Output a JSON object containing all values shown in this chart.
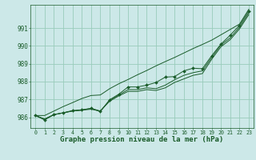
{
  "bg_color": "#cce8e8",
  "grid_color": "#99ccbb",
  "line_color": "#1a5c2a",
  "marker_color": "#1a5c2a",
  "xlabel": "Graphe pression niveau de la mer (hPa)",
  "xlabel_fontsize": 6.5,
  "xlim": [
    -0.5,
    23.5
  ],
  "ylim": [
    985.4,
    992.3
  ],
  "yticks": [
    986,
    987,
    988,
    989,
    990,
    991
  ],
  "xticks": [
    0,
    1,
    2,
    3,
    4,
    5,
    6,
    7,
    8,
    9,
    10,
    11,
    12,
    13,
    14,
    15,
    16,
    17,
    18,
    19,
    20,
    21,
    22,
    23
  ],
  "series": {
    "line_bottom": [
      986.1,
      985.9,
      986.15,
      986.25,
      986.35,
      986.4,
      986.45,
      986.35,
      986.9,
      987.2,
      987.45,
      987.45,
      987.55,
      987.5,
      987.65,
      987.95,
      988.15,
      988.35,
      988.45,
      989.25,
      989.95,
      990.35,
      990.95,
      991.75
    ],
    "line_mid1": [
      986.1,
      985.9,
      986.15,
      986.25,
      986.35,
      986.4,
      986.5,
      986.35,
      986.95,
      987.25,
      987.55,
      987.55,
      987.65,
      987.6,
      987.8,
      988.1,
      988.35,
      988.5,
      988.6,
      989.35,
      990.05,
      990.45,
      991.05,
      991.85
    ],
    "line_marked": [
      986.1,
      985.85,
      986.15,
      986.25,
      986.38,
      986.42,
      986.5,
      986.32,
      986.98,
      987.3,
      987.7,
      987.7,
      987.8,
      987.95,
      988.25,
      988.28,
      988.6,
      988.75,
      988.72,
      989.45,
      990.1,
      990.6,
      991.15,
      991.95
    ],
    "line_upper": [
      986.1,
      986.1,
      986.35,
      986.6,
      986.82,
      987.05,
      987.22,
      987.25,
      987.6,
      987.88,
      988.12,
      988.38,
      988.62,
      988.88,
      989.12,
      989.35,
      989.6,
      989.85,
      990.08,
      990.32,
      990.62,
      990.92,
      991.22,
      992.05
    ]
  }
}
